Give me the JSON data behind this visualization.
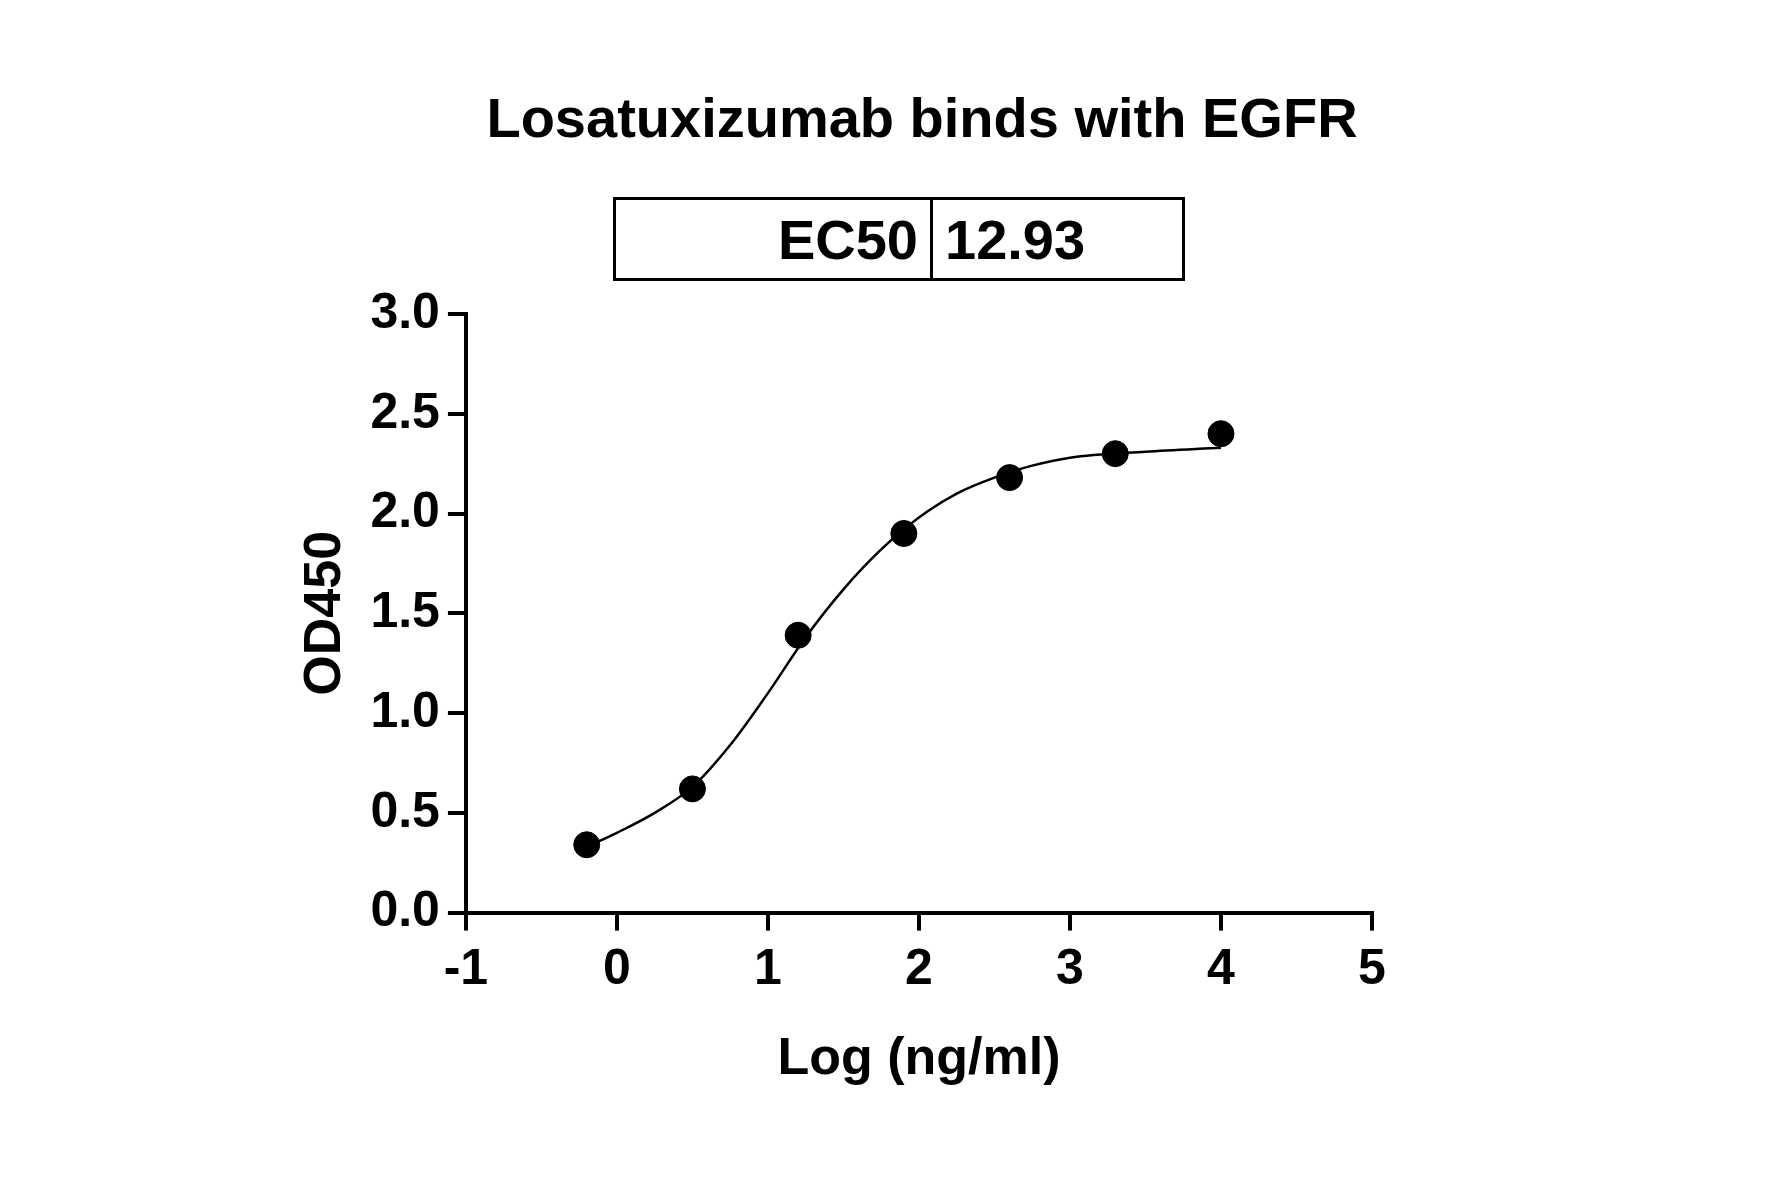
{
  "chart_data": {
    "type": "scatter",
    "title": "Losatuxizumab binds with EGFR",
    "xlabel": "Log (ng/ml)",
    "ylabel": "OD450",
    "annotations": [
      "EC50",
      "12.93"
    ],
    "xlim": [
      -1,
      5
    ],
    "xticks": [
      -1,
      0,
      1,
      2,
      3,
      4,
      5
    ],
    "ylim": [
      0,
      3
    ],
    "yticks": [
      {
        "value": 0,
        "label": "0.0"
      },
      0.5,
      {
        "value": 1,
        "label": "1.0"
      },
      1.5,
      {
        "value": 2,
        "label": "2.0"
      },
      2.5,
      {
        "value": 3,
        "label": "3.0"
      }
    ],
    "grid": false,
    "legend": false,
    "marker": "circle",
    "series": [
      {
        "color": "#000000",
        "x": [
          -0.2,
          0.5,
          1.2,
          1.9,
          2.6,
          3.3,
          4.0
        ],
        "values": [
          0.34,
          0.62,
          1.39,
          1.9,
          2.18,
          2.3,
          2.4
        ]
      },
      {
        "type": "line",
        "color": "#000000",
        "marker": "none",
        "line_style": "solid",
        "x": [
          -0.2,
          0,
          0.25,
          0.5,
          0.75,
          1,
          1.25,
          1.5,
          1.75,
          2,
          2.25,
          2.5,
          2.75,
          3,
          3.5,
          4
        ],
        "values": [
          0.33,
          0.4,
          0.5,
          0.63,
          0.84,
          1.1,
          1.38,
          1.62,
          1.82,
          1.98,
          2.1,
          2.18,
          2.24,
          2.28,
          2.31,
          2.33
        ]
      }
    ]
  }
}
